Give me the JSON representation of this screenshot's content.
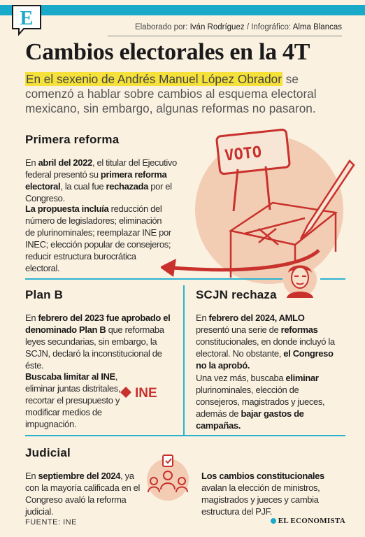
{
  "header": {
    "logo_letter": "E",
    "credits": {
      "elaborado_label": "Elaborado por:",
      "author": "Iván Rodríguez",
      "separator": "/",
      "infografico_label": "Infográfico:",
      "designer": "Alma Blancas"
    }
  },
  "title": "Cambios electorales en la 4T",
  "intro": {
    "highlight": "En el sexenio de Andrés Manuel López Obrador",
    "rest": " se comenzó a hablar sobre cambios al esquema electoral mexicano, sin embargo, algunas reformas no pasaron."
  },
  "primera": {
    "title": "Primera reforma",
    "p1": [
      {
        "t": "En ",
        "b": false
      },
      {
        "t": "abril del 2022",
        "b": true
      },
      {
        "t": ", el titular del Ejecutivo federal presentó su ",
        "b": false
      },
      {
        "t": "primera reforma electoral",
        "b": true
      },
      {
        "t": ", la cual fue ",
        "b": false
      },
      {
        "t": "rechazada",
        "b": true
      },
      {
        "t": " por el Congreso.",
        "b": false
      }
    ],
    "p2": [
      {
        "t": "La propuesta incluía",
        "b": true
      },
      {
        "t": " reducción del número de legisladores; eliminación de plurinominales; reemplazar INE por INEC; elección popular de consejeros; reducir estructura burocrática electoral.",
        "b": false
      }
    ],
    "sign_text": "VOTO"
  },
  "planb": {
    "title": "Plan B",
    "p1": [
      {
        "t": "En ",
        "b": false
      },
      {
        "t": "febrero del 2023 fue aprobado el denominado Plan B",
        "b": true
      },
      {
        "t": " que reformaba leyes secundarias, sin embargo, la SCJN, declaró la inconstitucional de éste.",
        "b": false
      }
    ],
    "p2": [
      {
        "t": "Buscaba limitar al INE",
        "b": true
      },
      {
        "t": ", eliminar juntas distritales, recortar el presupuesto y modificar medios de impugnación.",
        "b": false
      }
    ],
    "ine_logo": "INE"
  },
  "scjn": {
    "title": "SCJN rechaza",
    "p1": [
      {
        "t": "En ",
        "b": false
      },
      {
        "t": "febrero del 2024, AMLO",
        "b": true
      },
      {
        "t": " presentó una serie de ",
        "b": false
      },
      {
        "t": "reformas",
        "b": true
      },
      {
        "t": " constitucionales, en donde incluyó la electoral. No obstante, ",
        "b": false
      },
      {
        "t": "el Congreso no la aprobó.",
        "b": true
      }
    ],
    "p2": [
      {
        "t": "Una vez más, buscaba ",
        "b": false
      },
      {
        "t": "eliminar",
        "b": true
      },
      {
        "t": " plurinominales, elección de consejeros, magistrados y jueces, además de ",
        "b": false
      },
      {
        "t": "bajar gastos de campañas.",
        "b": true
      }
    ]
  },
  "judicial": {
    "title": "Judicial",
    "p1": [
      {
        "t": "En ",
        "b": false
      },
      {
        "t": "septiembre del 2024",
        "b": true
      },
      {
        "t": ", ya con la mayoría calificada en el Congreso avaló la reforma judicial.",
        "b": false
      }
    ],
    "p2": [
      {
        "t": "Los cambios constitucionales",
        "b": true
      },
      {
        "t": " avalan la elección de ministros, magistrados y jueces y cambia estructura del PJF.",
        "b": false
      }
    ]
  },
  "footer": {
    "source": "FUENTE: INE",
    "brand": "EL ECONOMISTA"
  },
  "colors": {
    "accent": "#19a9c9",
    "highlight": "#f5e13a",
    "illustration_red": "#c8312c",
    "illustration_bg": "#f2cdb4"
  }
}
